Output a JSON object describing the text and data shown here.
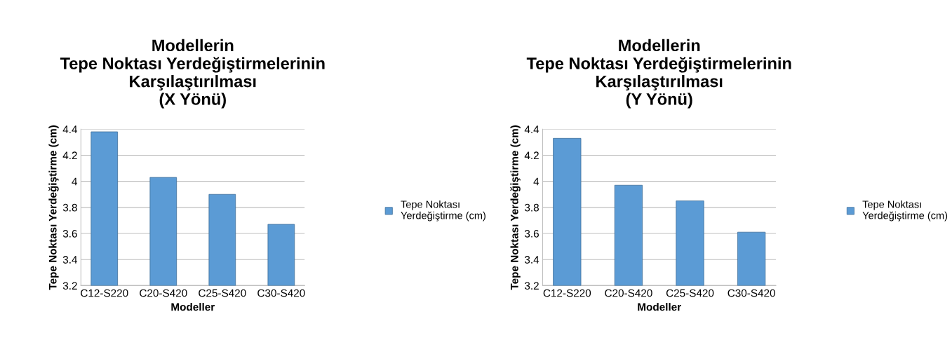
{
  "chart_data": [
    {
      "type": "bar",
      "title": "Modellerin\nTepe Noktası Yerdeğiştirmelerinin\nKarşılaştırılması\n(X Yönü)",
      "xlabel": "Modeller",
      "ylabel": "Tepe Noktası Yerdeğiştirme (cm)",
      "categories": [
        "C12-S220",
        "C20-S420",
        "C25-S420",
        "C30-S420"
      ],
      "series": [
        {
          "name": "Tepe Noktası\nYerdeğiştirme (cm)",
          "color": "#5b9bd5",
          "values": [
            4.38,
            4.03,
            3.9,
            3.67
          ]
        }
      ],
      "ylim": [
        3.2,
        4.4
      ],
      "yticks": [
        3.2,
        3.4,
        3.6,
        3.8,
        4,
        4.2,
        4.4
      ],
      "grid": "y",
      "legend": "right"
    },
    {
      "type": "bar",
      "title": "Modellerin\nTepe Noktası Yerdeğiştirmelerinin\nKarşılaştırılması\n(Y Yönü)",
      "xlabel": "Modeller",
      "ylabel": "Tepe Noktası Yerdeğiştirme (cm)",
      "categories": [
        "C12-S220",
        "C20-S420",
        "C25-S420",
        "C30-S420"
      ],
      "series": [
        {
          "name": "Tepe Noktası\nYerdeğiştirme (cm)",
          "color": "#5b9bd5",
          "values": [
            4.33,
            3.97,
            3.85,
            3.61
          ]
        }
      ],
      "ylim": [
        3.2,
        4.4
      ],
      "yticks": [
        3.2,
        3.4,
        3.6,
        3.8,
        4,
        4.2,
        4.4
      ],
      "grid": "y",
      "legend": "right"
    }
  ]
}
